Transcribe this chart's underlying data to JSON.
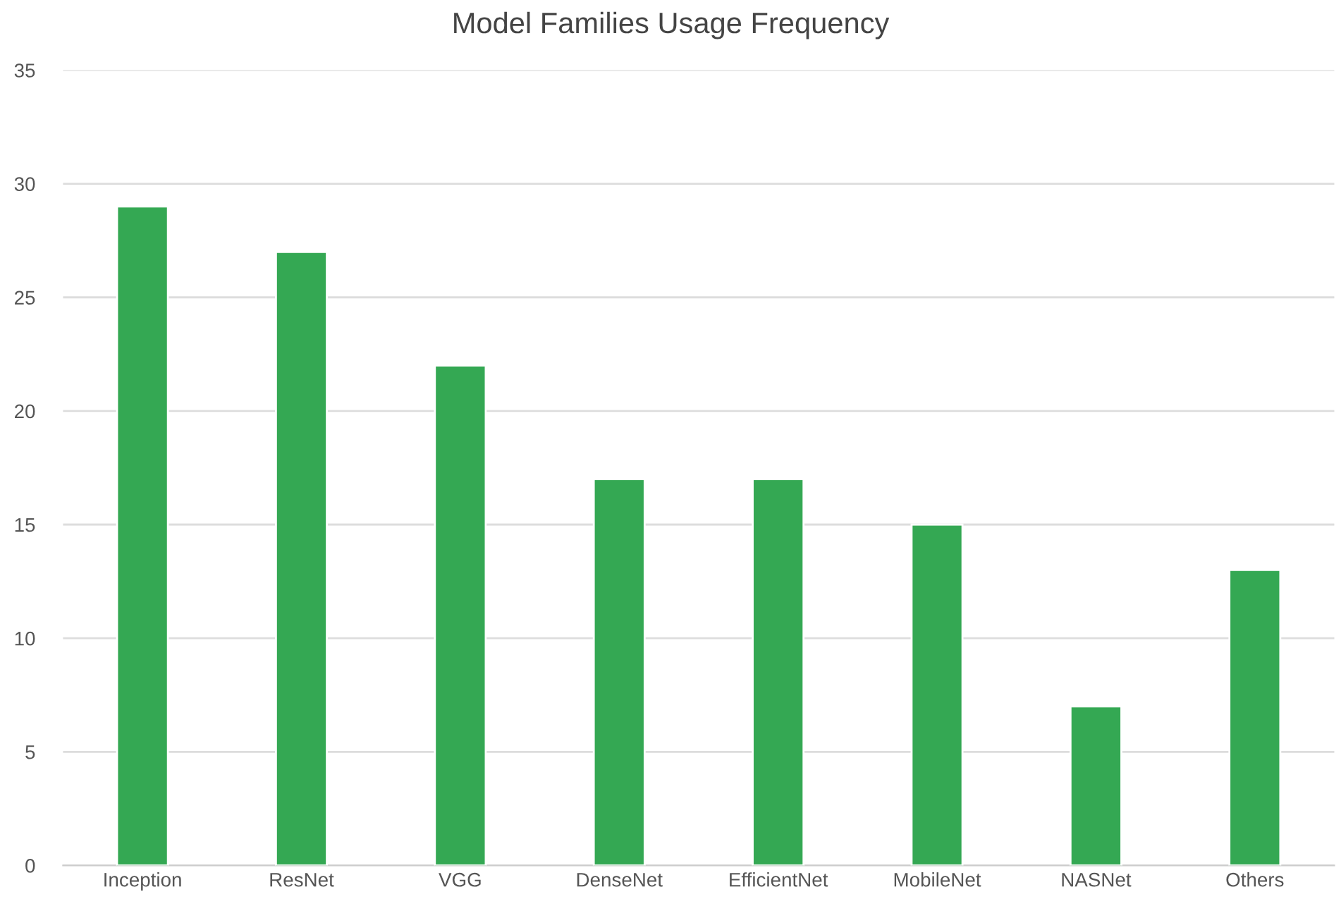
{
  "chart_data": {
    "type": "bar",
    "title": "Model Families Usage Frequency",
    "categories": [
      "Inception",
      "ResNet",
      "VGG",
      "DenseNet",
      "EfficientNet",
      "MobileNet",
      "NASNet",
      "Others"
    ],
    "values": [
      29,
      27,
      22,
      17,
      17,
      15,
      7,
      13
    ],
    "color": "#34a853",
    "ylim": [
      0,
      35
    ],
    "yticks": [
      0,
      5,
      10,
      15,
      20,
      25,
      30,
      35
    ],
    "grid": "y",
    "legend": false
  }
}
